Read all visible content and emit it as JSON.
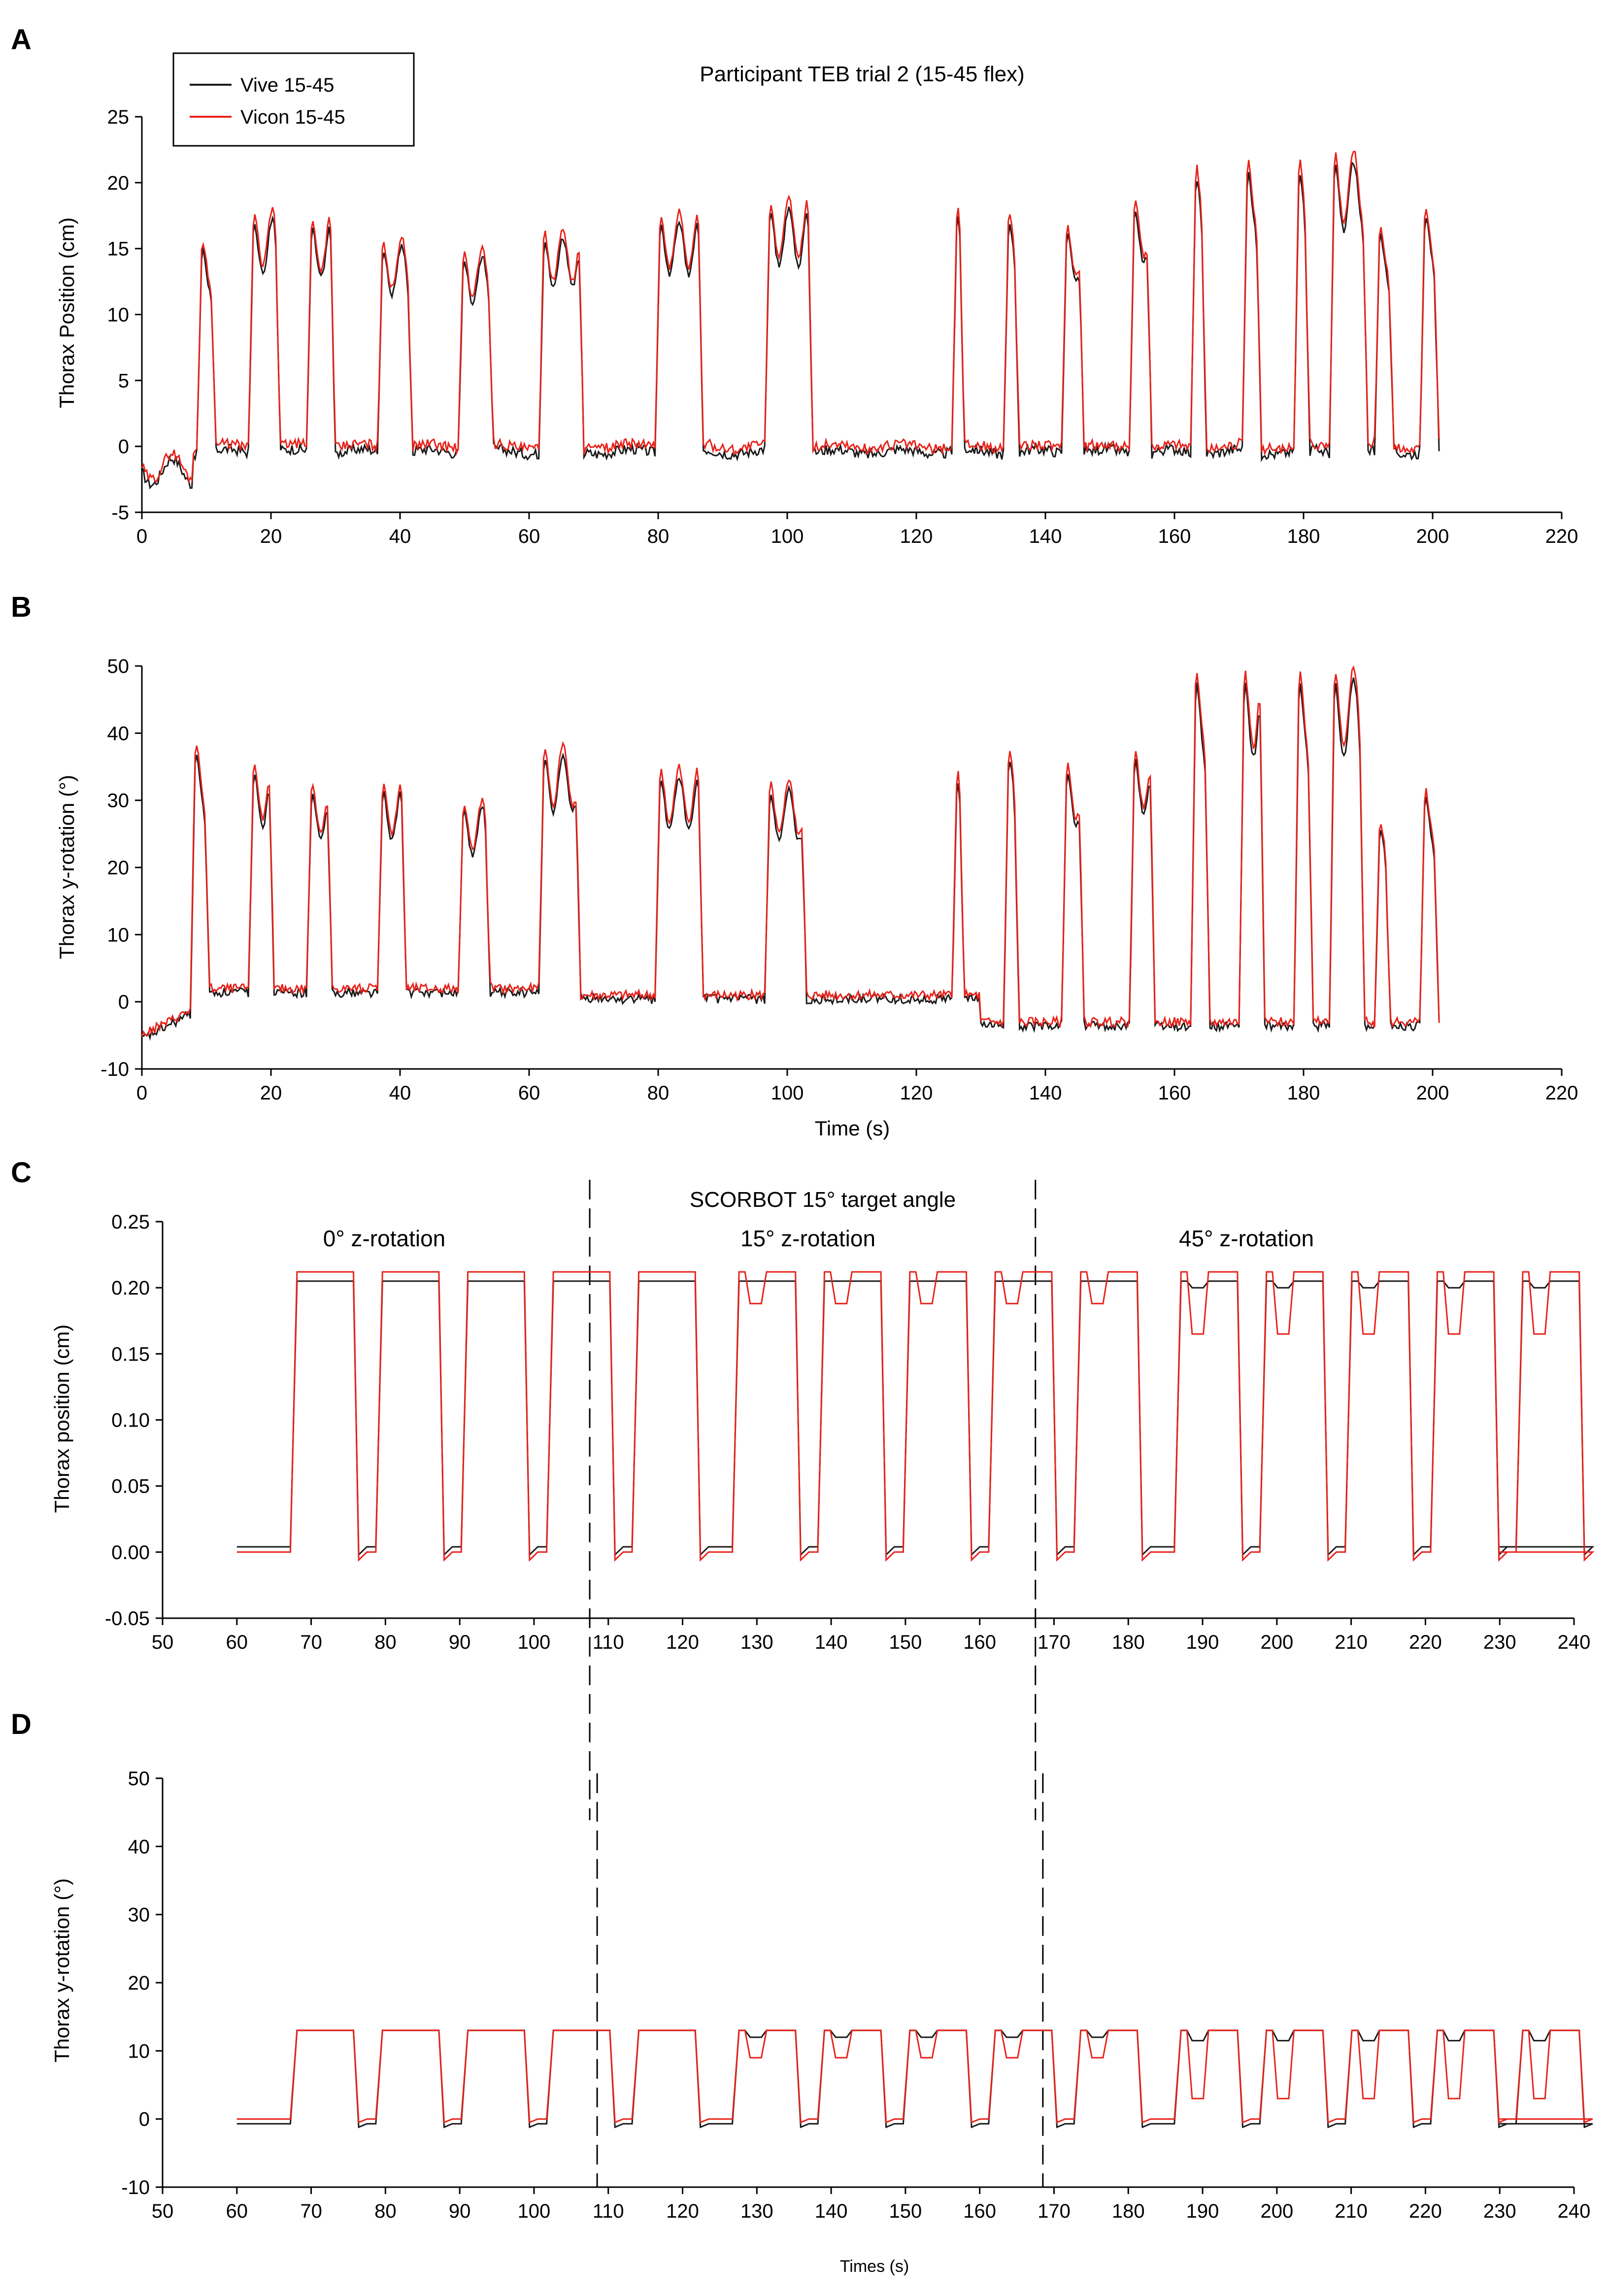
{
  "colors": {
    "vive": "#1a1a1a",
    "vicon": "#e8231b",
    "axis": "#000000"
  },
  "legend": {
    "vive": "Vive 15-45",
    "vicon": "Vicon 15-45"
  },
  "chart_data": [
    {
      "panel": "A",
      "type": "line",
      "title": "Participant TEB trial 2 (15-45 flex)",
      "xlabel": "",
      "ylabel": "Thorax Position (cm)",
      "xlim": [
        0,
        220
      ],
      "ylim": [
        -5,
        25
      ],
      "xticks": [
        0,
        20,
        40,
        60,
        80,
        100,
        120,
        140,
        160,
        180,
        200,
        220
      ],
      "yticks": [
        -5,
        0,
        5,
        10,
        15,
        20,
        25
      ],
      "pulses": [
        [
          8.5,
          11.5,
          15.8
        ],
        [
          16.5,
          21.5,
          18.0
        ],
        [
          25.5,
          30.0,
          17.5
        ],
        [
          36.5,
          42.0,
          15.8
        ],
        [
          49.0,
          54.5,
          15.0
        ],
        [
          61.5,
          68.5,
          16.5
        ],
        [
          79.5,
          87.0,
          17.8
        ],
        [
          96.5,
          104.0,
          18.8
        ],
        [
          125.5,
          127.5,
          18.5
        ],
        [
          133.5,
          136.0,
          18.0
        ],
        [
          142.5,
          146.0,
          17.0
        ],
        [
          153.0,
          156.5,
          19.0
        ],
        [
          162.5,
          165.0,
          21.5
        ],
        [
          170.5,
          173.5,
          22.0
        ],
        [
          178.5,
          181.0,
          22.0
        ],
        [
          184.0,
          190.0,
          22.5
        ],
        [
          191.0,
          194.0,
          17.0
        ],
        [
          198.0,
          201.0,
          18.5
        ]
      ],
      "series": [
        {
          "name": "Vive 15-45",
          "color": "#1a1a1a"
        },
        {
          "name": "Vicon 15-45",
          "color": "#e8231b"
        }
      ]
    },
    {
      "panel": "B",
      "type": "line",
      "title": "",
      "xlabel": "Time (s)",
      "ylabel": "Thorax y-rotation (°)",
      "xlim": [
        0,
        220
      ],
      "ylim": [
        -10,
        50
      ],
      "xticks": [
        0,
        20,
        40,
        60,
        80,
        100,
        120,
        140,
        160,
        180,
        200,
        220
      ],
      "yticks": [
        -10,
        0,
        10,
        20,
        30,
        40,
        50
      ],
      "pulses": [
        [
          7.5,
          10.5,
          39.0
        ],
        [
          16.5,
          20.5,
          36.0
        ],
        [
          25.5,
          29.5,
          33.0
        ],
        [
          36.5,
          41.0,
          33.0
        ],
        [
          49.0,
          54.0,
          30.0
        ],
        [
          61.5,
          68.0,
          38.5
        ],
        [
          79.5,
          87.0,
          35.0
        ],
        [
          96.5,
          103.0,
          33.0
        ],
        [
          125.5,
          127.5,
          34.5
        ],
        [
          133.5,
          136.0,
          38.0
        ],
        [
          142.5,
          146.0,
          36.0
        ],
        [
          153.0,
          157.0,
          38.0
        ],
        [
          162.5,
          165.5,
          50.0
        ],
        [
          170.0,
          174.0,
          50.0
        ],
        [
          178.5,
          181.5,
          50.0
        ],
        [
          184.0,
          189.5,
          50.0
        ],
        [
          191.0,
          193.5,
          27.0
        ],
        [
          198.0,
          201.0,
          32.0
        ]
      ],
      "series": [
        {
          "name": "Vive 15-45",
          "color": "#1a1a1a"
        },
        {
          "name": "Vicon 15-45",
          "color": "#e8231b"
        }
      ]
    },
    {
      "panel": "C",
      "type": "line",
      "title": "SCORBOT 15° target angle",
      "xlabel": "",
      "ylabel": "Thorax position (cm)",
      "xlim": [
        50,
        240
      ],
      "ylim": [
        -0.05,
        0.25
      ],
      "xticks": [
        50,
        60,
        70,
        80,
        90,
        100,
        110,
        120,
        130,
        140,
        150,
        160,
        170,
        180,
        190,
        200,
        210,
        220,
        230,
        240
      ],
      "yticks": [
        -0.05,
        0.0,
        0.05,
        0.1,
        0.15,
        0.2,
        0.25
      ],
      "ytick_labels": [
        "-0.05",
        "0.00",
        "0.05",
        "0.10",
        "0.15",
        "0.20",
        "0.25"
      ],
      "dividers": [
        107.5,
        167.5
      ],
      "regions": [
        "0° z-rotation",
        "15° z-rotation",
        "45° z-rotation"
      ],
      "vicon_high": 0.212,
      "vive_high": 0.205,
      "dips": {
        "vicon": [
          0,
          0.188,
          0.165
        ],
        "vive": [
          0,
          0.205,
          0.2
        ]
      },
      "series": [
        {
          "name": "Vive 15-45",
          "color": "#1a1a1a"
        },
        {
          "name": "Vicon 15-45",
          "color": "#e8231b"
        }
      ]
    },
    {
      "panel": "D",
      "type": "line",
      "title": "",
      "xlabel": "Times (s)",
      "ylabel": "Thorax y-rotation (°)",
      "xlim": [
        50,
        240
      ],
      "ylim": [
        -10,
        50
      ],
      "xticks": [
        50,
        60,
        70,
        80,
        90,
        100,
        110,
        120,
        130,
        140,
        150,
        160,
        170,
        180,
        190,
        200,
        210,
        220,
        230,
        240
      ],
      "yticks": [
        -10,
        0,
        10,
        20,
        30,
        40,
        50
      ],
      "dividers": [
        108.5,
        168.5
      ],
      "vicon_high": 13.0,
      "vive_high": 13.0,
      "dips": {
        "vicon": [
          0,
          9.0,
          3.0
        ],
        "vive": [
          0,
          12.0,
          11.5
        ]
      },
      "series": [
        {
          "name": "Vive 15-45",
          "color": "#1a1a1a"
        },
        {
          "name": "Vicon 15-45",
          "color": "#e8231b"
        }
      ]
    }
  ]
}
